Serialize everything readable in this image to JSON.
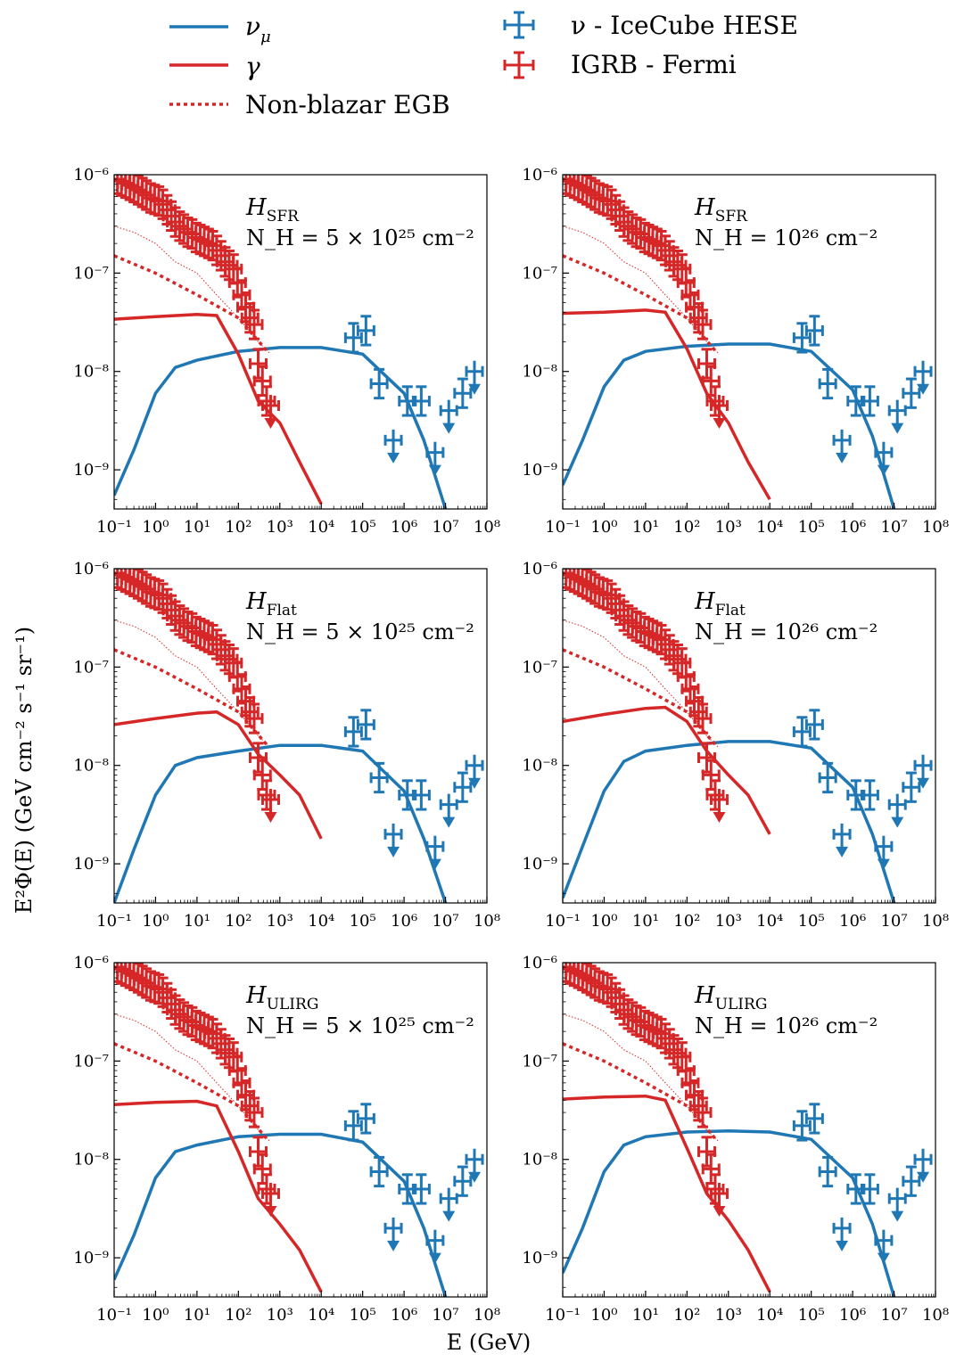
{
  "colors": {
    "nu": "#1f77b4",
    "gamma": "#d62728"
  },
  "legend": {
    "items": [
      {
        "key": "nu_mu",
        "label": "ν",
        "sub": "μ",
        "style": "solid",
        "color": "#1f77b4"
      },
      {
        "key": "gamma",
        "label": "γ",
        "style": "solid",
        "color": "#d62728"
      },
      {
        "key": "egb",
        "label": "Non-blazar EGB",
        "style": "dotted",
        "color": "#d62728"
      },
      {
        "key": "hese",
        "label": "ν - IceCube HESE",
        "style": "errorbar",
        "color": "#1f77b4"
      },
      {
        "key": "igrb",
        "label": "IGRB - Fermi",
        "style": "errorbar",
        "color": "#d62728"
      }
    ]
  },
  "xlabel": "E (GeV)",
  "ylabel": "E²Φ(E) (GeV cm⁻² s⁻¹ sr⁻¹)",
  "xticks": [
    "10⁻¹",
    "10⁰",
    "10¹",
    "10²",
    "10³",
    "10⁴",
    "10⁵",
    "10⁶",
    "10⁷",
    "10⁸"
  ],
  "yticks": [
    "10⁻⁹",
    "10⁻⁸",
    "10⁻⁷",
    "10⁻⁶"
  ],
  "chart_data": [
    {
      "type": "line",
      "model": "SFR",
      "NH": "N_H = 5 × 10²⁵ cm⁻²",
      "xscale": "log",
      "yscale": "log",
      "xlim": [
        0.1,
        100000000.0
      ],
      "ylim": [
        4e-10,
        1e-06
      ],
      "series": [
        {
          "name": "ν_μ",
          "x": [
            0.1,
            0.3,
            1,
            3,
            10,
            100,
            1000,
            10000,
            100000,
            1000000,
            3000000,
            10000000
          ],
          "y": [
            5.5e-10,
            1.6e-09,
            6e-09,
            1.1e-08,
            1.3e-08,
            1.6e-08,
            1.75e-08,
            1.75e-08,
            1.5e-08,
            6e-09,
            2e-09,
            4e-10
          ]
        },
        {
          "name": "γ",
          "x": [
            0.1,
            1,
            10,
            30,
            100,
            300,
            1000,
            3000,
            10000
          ],
          "y": [
            3.4e-08,
            3.6e-08,
            3.8e-08,
            3.7e-08,
            1.5e-08,
            5e-09,
            3e-09,
            1.2e-09,
            4.5e-10
          ]
        },
        {
          "name": "Non-blazar EGB",
          "x": [
            0.1,
            1,
            10,
            100,
            500
          ],
          "y": [
            1.5e-07,
            1e-07,
            6e-08,
            3.5e-08,
            1.6e-08
          ]
        }
      ]
    },
    {
      "type": "line",
      "model": "SFR",
      "NH": "N_H = 10²⁶ cm⁻²",
      "xscale": "log",
      "yscale": "log",
      "xlim": [
        0.1,
        100000000.0
      ],
      "ylim": [
        4e-10,
        1e-06
      ],
      "series": [
        {
          "name": "ν_μ",
          "x": [
            0.1,
            0.3,
            1,
            3,
            10,
            100,
            1000,
            10000,
            100000,
            1000000,
            3000000,
            10000000
          ],
          "y": [
            7e-10,
            2e-09,
            7e-09,
            1.3e-08,
            1.6e-08,
            1.8e-08,
            1.9e-08,
            1.9e-08,
            1.6e-08,
            6.5e-09,
            2.2e-09,
            4e-10
          ]
        },
        {
          "name": "γ",
          "x": [
            0.1,
            1,
            10,
            30,
            100,
            300,
            1000,
            3000,
            10000
          ],
          "y": [
            3.9e-08,
            4e-08,
            4.2e-08,
            4e-08,
            1.7e-08,
            6e-09,
            3e-09,
            1.2e-09,
            5e-10
          ]
        },
        {
          "name": "Non-blazar EGB",
          "x": [
            0.1,
            1,
            10,
            100,
            500
          ],
          "y": [
            1.5e-07,
            1e-07,
            6e-08,
            3.5e-08,
            1.6e-08
          ]
        }
      ]
    },
    {
      "type": "line",
      "model": "Flat",
      "NH": "N_H = 5 × 10²⁵ cm⁻²",
      "xscale": "log",
      "yscale": "log",
      "xlim": [
        0.1,
        100000000.0
      ],
      "ylim": [
        4e-10,
        1e-06
      ],
      "series": [
        {
          "name": "ν_μ",
          "x": [
            0.1,
            0.3,
            1,
            3,
            10,
            100,
            1000,
            10000,
            100000,
            1000000,
            3000000,
            10000000
          ],
          "y": [
            4e-10,
            1.4e-09,
            5e-09,
            1e-08,
            1.2e-08,
            1.4e-08,
            1.6e-08,
            1.6e-08,
            1.4e-08,
            5.5e-09,
            1.8e-09,
            4e-10
          ]
        },
        {
          "name": "γ",
          "x": [
            0.1,
            1,
            10,
            30,
            100,
            300,
            1000,
            3000,
            10000
          ],
          "y": [
            2.6e-08,
            3e-08,
            3.4e-08,
            3.5e-08,
            2.6e-08,
            1.3e-08,
            8e-09,
            5e-09,
            1.8e-09
          ]
        },
        {
          "name": "Non-blazar EGB",
          "x": [
            0.1,
            1,
            10,
            100,
            500
          ],
          "y": [
            1.5e-07,
            1e-07,
            6e-08,
            3.5e-08,
            1.6e-08
          ]
        }
      ]
    },
    {
      "type": "line",
      "model": "Flat",
      "NH": "N_H = 10²⁶ cm⁻²",
      "xscale": "log",
      "yscale": "log",
      "xlim": [
        0.1,
        100000000.0
      ],
      "ylim": [
        4e-10,
        1e-06
      ],
      "series": [
        {
          "name": "ν_μ",
          "x": [
            0.1,
            0.3,
            1,
            3,
            10,
            100,
            1000,
            10000,
            100000,
            1000000,
            3000000,
            10000000
          ],
          "y": [
            4.5e-10,
            1.5e-09,
            5.5e-09,
            1.1e-08,
            1.4e-08,
            1.6e-08,
            1.75e-08,
            1.75e-08,
            1.5e-08,
            6e-09,
            2e-09,
            4e-10
          ]
        },
        {
          "name": "γ",
          "x": [
            0.1,
            1,
            10,
            30,
            100,
            300,
            1000,
            3000,
            10000
          ],
          "y": [
            2.8e-08,
            3.3e-08,
            3.8e-08,
            3.9e-08,
            2.8e-08,
            1.4e-08,
            8e-09,
            5e-09,
            2e-09
          ]
        },
        {
          "name": "Non-blazar EGB",
          "x": [
            0.1,
            1,
            10,
            100,
            500
          ],
          "y": [
            1.5e-07,
            1e-07,
            6e-08,
            3.5e-08,
            1.6e-08
          ]
        }
      ]
    },
    {
      "type": "line",
      "model": "ULIRG",
      "NH": "N_H = 5 × 10²⁵ cm⁻²",
      "xscale": "log",
      "yscale": "log",
      "xlim": [
        0.1,
        100000000.0
      ],
      "ylim": [
        4e-10,
        1e-06
      ],
      "series": [
        {
          "name": "ν_μ",
          "x": [
            0.1,
            0.3,
            1,
            3,
            10,
            100,
            1000,
            10000,
            100000,
            1000000,
            3000000,
            10000000
          ],
          "y": [
            6e-10,
            1.7e-09,
            6.5e-09,
            1.2e-08,
            1.4e-08,
            1.7e-08,
            1.8e-08,
            1.8e-08,
            1.5e-08,
            6e-09,
            2e-09,
            4e-10
          ]
        },
        {
          "name": "γ",
          "x": [
            0.1,
            1,
            10,
            30,
            100,
            300,
            1000,
            3000,
            10000
          ],
          "y": [
            3.6e-08,
            3.8e-08,
            3.9e-08,
            3.5e-08,
            1.2e-08,
            4e-09,
            2.2e-09,
            1.2e-09,
            4.5e-10
          ]
        },
        {
          "name": "Non-blazar EGB",
          "x": [
            0.1,
            1,
            10,
            100,
            500
          ],
          "y": [
            1.5e-07,
            1e-07,
            6e-08,
            3.5e-08,
            1.6e-08
          ]
        }
      ]
    },
    {
      "type": "line",
      "model": "ULIRG",
      "NH": "N_H = 10²⁶ cm⁻²",
      "xscale": "log",
      "yscale": "log",
      "xlim": [
        0.1,
        100000000.0
      ],
      "ylim": [
        4e-10,
        1e-06
      ],
      "series": [
        {
          "name": "ν_μ",
          "x": [
            0.1,
            0.3,
            1,
            3,
            10,
            100,
            1000,
            10000,
            100000,
            1000000,
            3000000,
            10000000
          ],
          "y": [
            7e-10,
            2e-09,
            7.5e-09,
            1.4e-08,
            1.7e-08,
            1.9e-08,
            1.95e-08,
            1.9e-08,
            1.6e-08,
            6.5e-09,
            2.2e-09,
            4e-10
          ]
        },
        {
          "name": "γ",
          "x": [
            0.1,
            1,
            10,
            30,
            100,
            300,
            1000,
            3000,
            10000
          ],
          "y": [
            4.1e-08,
            4.3e-08,
            4.4e-08,
            4e-08,
            1.3e-08,
            4.5e-09,
            2.4e-09,
            1.2e-09,
            4.5e-10
          ]
        },
        {
          "name": "Non-blazar EGB",
          "x": [
            0.1,
            1,
            10,
            100,
            500
          ],
          "y": [
            1.5e-07,
            1e-07,
            6e-08,
            3.5e-08,
            1.6e-08
          ]
        }
      ]
    }
  ],
  "datasets": {
    "egb_fine": {
      "x": [
        0.1,
        0.3,
        1,
        3,
        10,
        30,
        100,
        300,
        600
      ],
      "y": [
        3e-07,
        2.6e-07,
        2e-07,
        1.3e-07,
        1e-07,
        6e-08,
        3.5e-08,
        2e-08,
        1.5e-08
      ]
    },
    "igrb": {
      "x": [
        0.12,
        0.15,
        0.19,
        0.24,
        0.3,
        0.38,
        0.48,
        0.6,
        0.76,
        0.95,
        1.2,
        1.5,
        1.9,
        2.4,
        3,
        3.8,
        4.8,
        6,
        7.6,
        9.5,
        12,
        15,
        19,
        24,
        30,
        38,
        48,
        60,
        76,
        95,
        120,
        150,
        190,
        240,
        300,
        380,
        480,
        600
      ],
      "y": [
        9e-07,
        8.6e-07,
        8.2e-07,
        7.8e-07,
        7.4e-07,
        7e-07,
        6.6e-07,
        6.2e-07,
        5.8e-07,
        5.6e-07,
        5.4e-07,
        5e-07,
        4.4e-07,
        3.8e-07,
        3.3e-07,
        3e-07,
        2.8e-07,
        2.6e-07,
        2.5e-07,
        2.3e-07,
        2.2e-07,
        2.1e-07,
        2e-07,
        1.9e-07,
        1.7e-07,
        1.5e-07,
        1.3e-07,
        1.2e-07,
        1.1e-07,
        8e-08,
        6e-08,
        4.5e-08,
        3.5e-08,
        3e-08,
        1.2e-08,
        8e-09,
        5e-09,
        4.5e-09
      ],
      "ulim": [
        0,
        0,
        0,
        0,
        0,
        0,
        0,
        0,
        0,
        0,
        0,
        0,
        0,
        0,
        0,
        0,
        0,
        0,
        0,
        0,
        0,
        0,
        0,
        0,
        0,
        0,
        0,
        0,
        0,
        0,
        0,
        0,
        0,
        0,
        0,
        0,
        0,
        1
      ]
    },
    "hese": {
      "x": [
        60000,
        120000,
        250000,
        550000,
        1200000,
        2600000,
        5600000,
        12000000,
        26000000,
        50000000
      ],
      "y": [
        2.2e-08,
        2.6e-08,
        7.5e-09,
        2e-09,
        5e-09,
        5e-09,
        1.5e-09,
        4e-09,
        6e-09,
        1e-08
      ],
      "ulim": [
        0,
        0,
        0,
        1,
        0,
        0,
        1,
        1,
        0,
        1
      ]
    }
  }
}
